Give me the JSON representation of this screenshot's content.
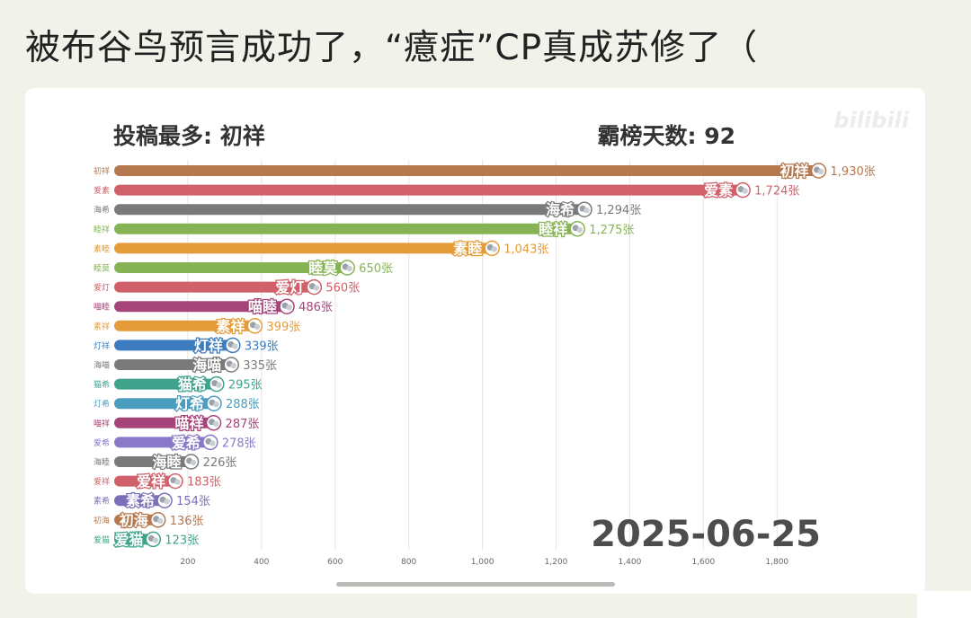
{
  "post": {
    "title": "被布谷鸟预言成功了，“癔症”CP真成苏修了（"
  },
  "chart_data": {
    "type": "bar",
    "orientation": "horizontal",
    "title_left": "投稿最多: 初祥",
    "title_right": "霸榜天数: 92",
    "date": "2025-06-25",
    "watermark": "bilibili",
    "value_suffix": "张",
    "xlim": [
      0,
      1950
    ],
    "x_ticks": [
      "200",
      "400",
      "600",
      "800",
      "1,000",
      "1,200",
      "1,400",
      "1,600",
      "1,800"
    ],
    "x_tick_values": [
      200,
      400,
      600,
      800,
      1000,
      1200,
      1400,
      1600,
      1800
    ],
    "grid": true,
    "bars": [
      {
        "name": "初祥",
        "value": 1930,
        "label": "1,930张",
        "color": "#b5784f"
      },
      {
        "name": "爱素",
        "value": 1724,
        "label": "1,724张",
        "color": "#d0606a"
      },
      {
        "name": "海希",
        "value": 1294,
        "label": "1,294张",
        "color": "#7a7a7a"
      },
      {
        "name": "睦祥",
        "value": 1275,
        "label": "1,275张",
        "color": "#86b454"
      },
      {
        "name": "素睦",
        "value": 1043,
        "label": "1,043张",
        "color": "#e49c38"
      },
      {
        "name": "睦莫",
        "value": 650,
        "label": "650张",
        "color": "#86b454"
      },
      {
        "name": "爱灯",
        "value": 560,
        "label": "560张",
        "color": "#d0606a"
      },
      {
        "name": "喵睦",
        "value": 486,
        "label": "486张",
        "color": "#a54478"
      },
      {
        "name": "素祥",
        "value": 399,
        "label": "399张",
        "color": "#e49c38"
      },
      {
        "name": "灯祥",
        "value": 339,
        "label": "339张",
        "color": "#3c7cbf"
      },
      {
        "name": "海喵",
        "value": 335,
        "label": "335张",
        "color": "#7a7a7a"
      },
      {
        "name": "猫希",
        "value": 295,
        "label": "295张",
        "color": "#3fa38c"
      },
      {
        "name": "灯希",
        "value": 288,
        "label": "288张",
        "color": "#4a9dbf"
      },
      {
        "name": "喵祥",
        "value": 287,
        "label": "287张",
        "color": "#a54478"
      },
      {
        "name": "爱希",
        "value": 278,
        "label": "278张",
        "color": "#8a78c8"
      },
      {
        "name": "海睦",
        "value": 226,
        "label": "226张",
        "color": "#7a7a7a"
      },
      {
        "name": "爱祥",
        "value": 183,
        "label": "183张",
        "color": "#d0606a"
      },
      {
        "name": "素希",
        "value": 154,
        "label": "154张",
        "color": "#7a70b8"
      },
      {
        "name": "初海",
        "value": 136,
        "label": "136张",
        "color": "#b5784f"
      },
      {
        "name": "爱猫",
        "value": 123,
        "label": "123张",
        "color": "#3fa38c"
      }
    ]
  }
}
